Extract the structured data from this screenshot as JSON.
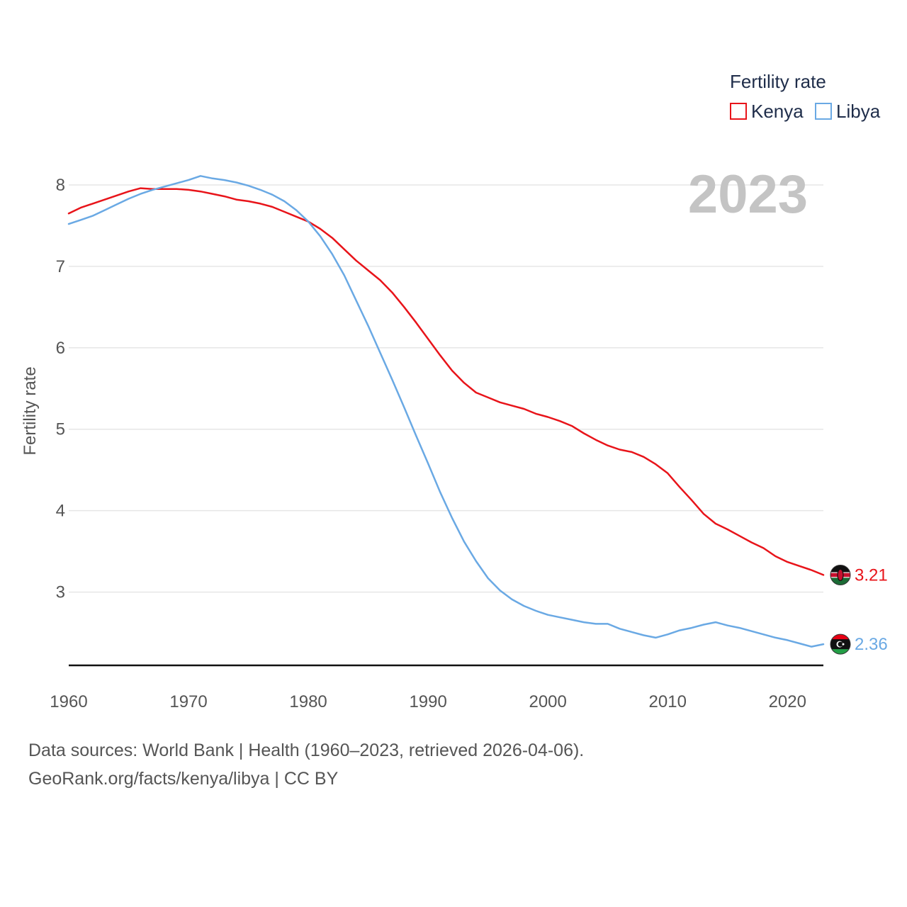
{
  "chart_data": {
    "type": "line",
    "title": "Fertility rate",
    "year_label": "2023",
    "ylabel": "Fertility rate",
    "xlabel": "",
    "xlim": [
      1960,
      2023
    ],
    "ylim": [
      2.1,
      8.4
    ],
    "y_ticks": [
      3,
      4,
      5,
      6,
      7,
      8
    ],
    "x_ticks": [
      1960,
      1970,
      1980,
      1990,
      2000,
      2010,
      2020
    ],
    "grid": true,
    "legend_position": "top-right",
    "series": [
      {
        "name": "Kenya",
        "color": "#e8141a",
        "end_label": "3.21",
        "points": [
          [
            1960,
            7.65
          ],
          [
            1961,
            7.72
          ],
          [
            1962,
            7.77
          ],
          [
            1963,
            7.82
          ],
          [
            1964,
            7.87
          ],
          [
            1965,
            7.92
          ],
          [
            1966,
            7.96
          ],
          [
            1967,
            7.95
          ],
          [
            1968,
            7.95
          ],
          [
            1969,
            7.95
          ],
          [
            1970,
            7.94
          ],
          [
            1971,
            7.92
          ],
          [
            1972,
            7.89
          ],
          [
            1973,
            7.86
          ],
          [
            1974,
            7.82
          ],
          [
            1975,
            7.8
          ],
          [
            1976,
            7.77
          ],
          [
            1977,
            7.73
          ],
          [
            1978,
            7.67
          ],
          [
            1979,
            7.61
          ],
          [
            1980,
            7.55
          ],
          [
            1981,
            7.46
          ],
          [
            1982,
            7.35
          ],
          [
            1983,
            7.21
          ],
          [
            1984,
            7.07
          ],
          [
            1985,
            6.95
          ],
          [
            1986,
            6.83
          ],
          [
            1987,
            6.68
          ],
          [
            1988,
            6.5
          ],
          [
            1989,
            6.31
          ],
          [
            1990,
            6.11
          ],
          [
            1991,
            5.91
          ],
          [
            1992,
            5.72
          ],
          [
            1993,
            5.57
          ],
          [
            1994,
            5.45
          ],
          [
            1995,
            5.39
          ],
          [
            1996,
            5.33
          ],
          [
            1997,
            5.29
          ],
          [
            1998,
            5.25
          ],
          [
            1999,
            5.19
          ],
          [
            2000,
            5.15
          ],
          [
            2001,
            5.1
          ],
          [
            2002,
            5.04
          ],
          [
            2003,
            4.95
          ],
          [
            2004,
            4.87
          ],
          [
            2005,
            4.8
          ],
          [
            2006,
            4.75
          ],
          [
            2007,
            4.72
          ],
          [
            2008,
            4.66
          ],
          [
            2009,
            4.57
          ],
          [
            2010,
            4.46
          ],
          [
            2011,
            4.29
          ],
          [
            2012,
            4.13
          ],
          [
            2013,
            3.96
          ],
          [
            2014,
            3.84
          ],
          [
            2015,
            3.77
          ],
          [
            2016,
            3.69
          ],
          [
            2017,
            3.61
          ],
          [
            2018,
            3.54
          ],
          [
            2019,
            3.44
          ],
          [
            2020,
            3.37
          ],
          [
            2021,
            3.32
          ],
          [
            2022,
            3.27
          ],
          [
            2023,
            3.21
          ]
        ]
      },
      {
        "name": "Libya",
        "color": "#6aa9e4",
        "end_label": "2.36",
        "points": [
          [
            1960,
            7.52
          ],
          [
            1961,
            7.57
          ],
          [
            1962,
            7.62
          ],
          [
            1963,
            7.69
          ],
          [
            1964,
            7.76
          ],
          [
            1965,
            7.83
          ],
          [
            1966,
            7.89
          ],
          [
            1967,
            7.94
          ],
          [
            1968,
            7.98
          ],
          [
            1969,
            8.02
          ],
          [
            1970,
            8.06
          ],
          [
            1971,
            8.11
          ],
          [
            1972,
            8.08
          ],
          [
            1973,
            8.06
          ],
          [
            1974,
            8.03
          ],
          [
            1975,
            7.99
          ],
          [
            1976,
            7.94
          ],
          [
            1977,
            7.88
          ],
          [
            1978,
            7.8
          ],
          [
            1979,
            7.69
          ],
          [
            1980,
            7.55
          ],
          [
            1981,
            7.37
          ],
          [
            1982,
            7.15
          ],
          [
            1983,
            6.89
          ],
          [
            1984,
            6.58
          ],
          [
            1985,
            6.27
          ],
          [
            1986,
            5.94
          ],
          [
            1987,
            5.61
          ],
          [
            1988,
            5.27
          ],
          [
            1989,
            4.92
          ],
          [
            1990,
            4.58
          ],
          [
            1991,
            4.23
          ],
          [
            1992,
            3.91
          ],
          [
            1993,
            3.62
          ],
          [
            1994,
            3.38
          ],
          [
            1995,
            3.17
          ],
          [
            1996,
            3.02
          ],
          [
            1997,
            2.91
          ],
          [
            1998,
            2.83
          ],
          [
            1999,
            2.77
          ],
          [
            2000,
            2.72
          ],
          [
            2001,
            2.69
          ],
          [
            2002,
            2.66
          ],
          [
            2003,
            2.63
          ],
          [
            2004,
            2.61
          ],
          [
            2005,
            2.61
          ],
          [
            2006,
            2.55
          ],
          [
            2007,
            2.51
          ],
          [
            2008,
            2.47
          ],
          [
            2009,
            2.44
          ],
          [
            2010,
            2.48
          ],
          [
            2011,
            2.53
          ],
          [
            2012,
            2.56
          ],
          [
            2013,
            2.6
          ],
          [
            2014,
            2.63
          ],
          [
            2015,
            2.59
          ],
          [
            2016,
            2.56
          ],
          [
            2017,
            2.52
          ],
          [
            2018,
            2.48
          ],
          [
            2019,
            2.44
          ],
          [
            2020,
            2.41
          ],
          [
            2021,
            2.37
          ],
          [
            2022,
            2.33
          ],
          [
            2023,
            2.36
          ]
        ]
      }
    ]
  },
  "footer": {
    "sources": "Data sources: World Bank | Health (1960–2023, retrieved 2026-04-06).",
    "credit": "GeoRank.org/facts/kenya/libya | CC BY"
  }
}
